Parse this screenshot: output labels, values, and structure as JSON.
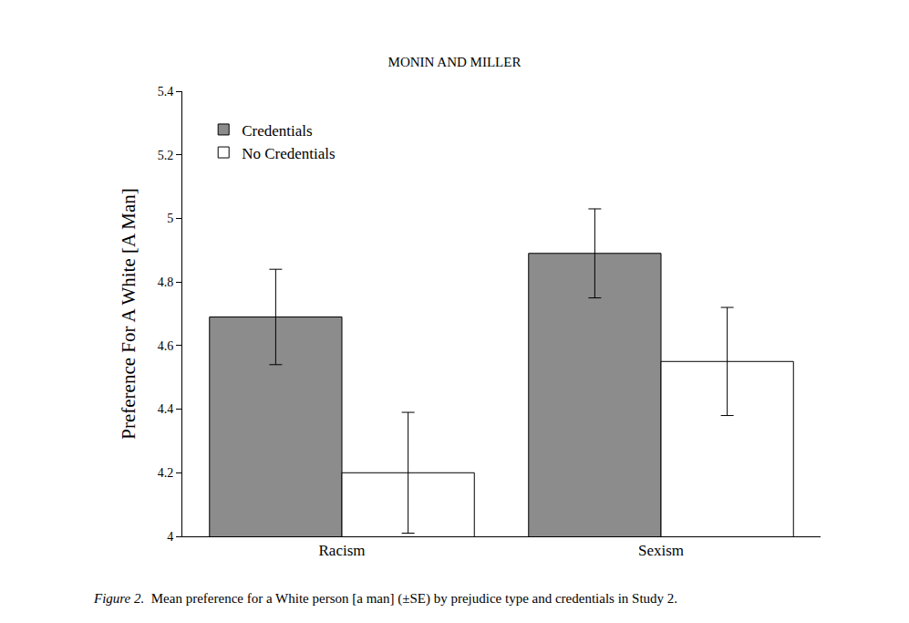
{
  "chart_data": {
    "type": "bar",
    "title": "MONIN AND MILLER",
    "caption_label": "Figure 2.",
    "caption": "Mean preference for a White person [a man] (±SE) by prejudice type and credentials in Study 2.",
    "y_label": "Preference For A White [A Man]",
    "categories": [
      "Racism",
      "Sexism"
    ],
    "series": [
      {
        "name": "Credentials",
        "color": "#8c8c8c",
        "values": [
          4.69,
          4.89
        ],
        "errors": [
          0.15,
          0.14
        ]
      },
      {
        "name": "No Credentials",
        "color": "#ffffff",
        "values": [
          4.2,
          4.55
        ],
        "errors": [
          0.19,
          0.17
        ]
      }
    ],
    "ylim": [
      4,
      5.4
    ],
    "yticks": [
      4,
      4.2,
      4.4,
      4.6,
      4.8,
      5,
      5.2,
      5.4
    ],
    "grid": false,
    "legend": "top-left"
  }
}
